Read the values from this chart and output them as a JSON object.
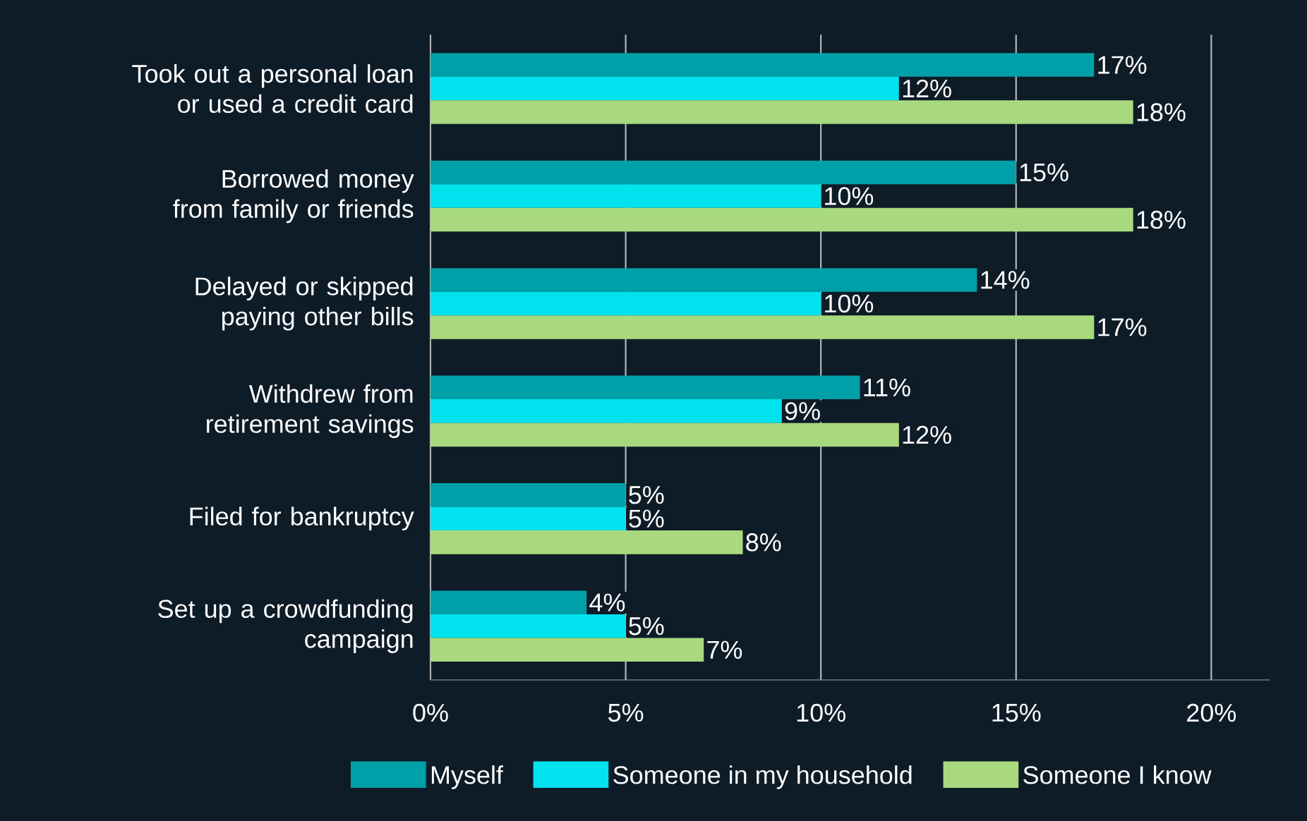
{
  "chart_data": {
    "type": "bar",
    "orientation": "horizontal",
    "categories": [
      "Took out a personal loan or used a credit card",
      "Borrowed money from family or friends",
      "Delayed or skipped paying other bills",
      "Withdrew from retirement savings",
      "Filed for bankruptcy",
      "Set up a crowdfunding campaign"
    ],
    "series": [
      {
        "name": "Myself",
        "color": "#00a0a8",
        "values": [
          17,
          15,
          14,
          11,
          5,
          4
        ],
        "value_labels": [
          "17%",
          "15%",
          "14%",
          "11%",
          "5%",
          "4%"
        ]
      },
      {
        "name": "Someone in my household",
        "color": "#00e3ee",
        "values": [
          12,
          10,
          10,
          9,
          5,
          5
        ],
        "value_labels": [
          "12%",
          "10%",
          "10%",
          "9%",
          "5%",
          "5%"
        ]
      },
      {
        "name": "Someone I know",
        "color": "#a9d97e",
        "values": [
          18,
          18,
          17,
          12,
          8,
          7
        ],
        "value_labels": [
          "18%",
          "18%",
          "17%",
          "12%",
          "8%",
          "7%"
        ]
      }
    ],
    "xlim": [
      0,
      21.5
    ],
    "xticks": [
      {
        "value": 0,
        "label": "0%"
      },
      {
        "value": 5,
        "label": "5%"
      },
      {
        "value": 10,
        "label": "10%"
      },
      {
        "value": 15,
        "label": "15%"
      },
      {
        "value": 20,
        "label": "20%"
      }
    ],
    "grid": "x",
    "legend": "bottom"
  }
}
